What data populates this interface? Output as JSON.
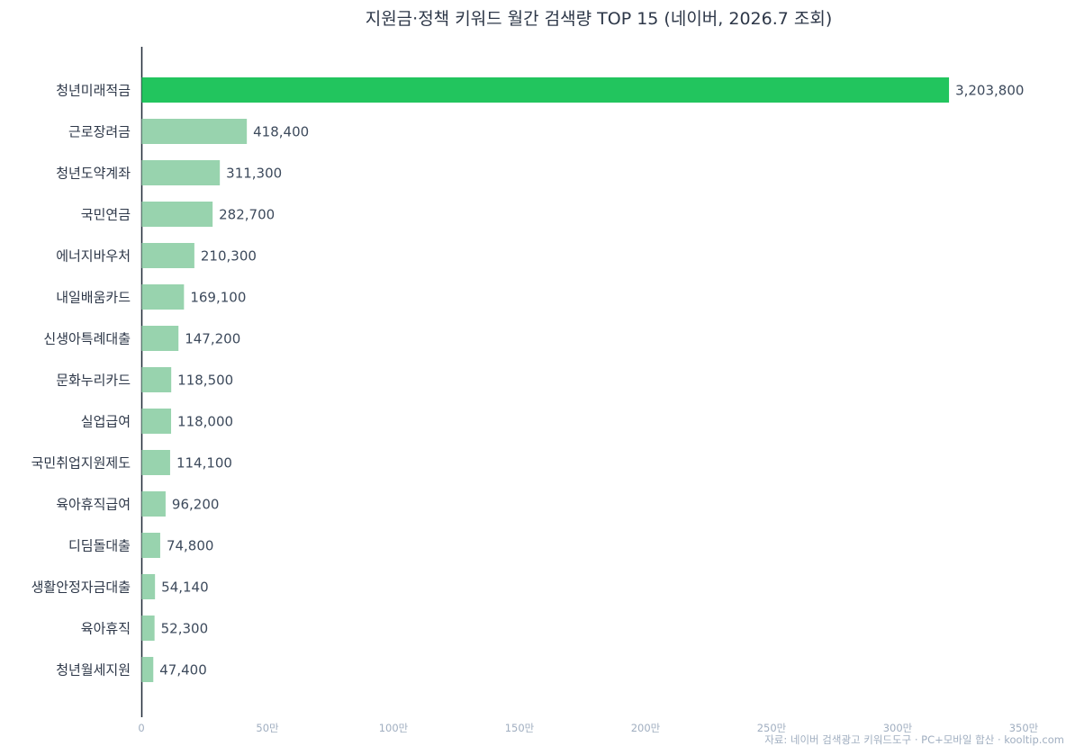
{
  "chart_data": {
    "type": "bar",
    "orientation": "horizontal",
    "title": "지원금·정책 키워드 월간 검색량 TOP 15 (네이버, 2026.7 조회)",
    "xlabel": "",
    "ylabel": "",
    "categories": [
      "청년미래적금",
      "근로장려금",
      "청년도약계좌",
      "국민연금",
      "에너지바우처",
      "내일배움카드",
      "신생아특례대출",
      "문화누리카드",
      "실업급여",
      "국민취업지원제도",
      "육아휴직급여",
      "디딤돌대출",
      "생활안정자금대출",
      "육아휴직",
      "청년월세지원"
    ],
    "values": [
      3203800,
      418400,
      311300,
      282700,
      210300,
      169100,
      147200,
      118500,
      118000,
      114100,
      96200,
      74800,
      54140,
      52300,
      47400
    ],
    "value_labels": [
      "3,203,800",
      "418,400",
      "311,300",
      "282,700",
      "210,300",
      "169,100",
      "147,200",
      "118,500",
      "118,000",
      "114,100",
      "96,200",
      "74,800",
      "54,140",
      "52,300",
      "47,400"
    ],
    "xlim": [
      0,
      3500000
    ],
    "xticks": [
      0,
      500000,
      1000000,
      1500000,
      2000000,
      2500000,
      3000000,
      3500000
    ],
    "xtick_labels": [
      "0",
      "50만",
      "100만",
      "150만",
      "200만",
      "250만",
      "300만",
      "350만"
    ],
    "highlight_color": "#22c55e",
    "bar_color": "#98d3ae",
    "grid": false,
    "legend": "none",
    "source_note": "자료: 네이버 검색광고 키워드도구 · PC+모바일 합산 · kooltip.com"
  }
}
